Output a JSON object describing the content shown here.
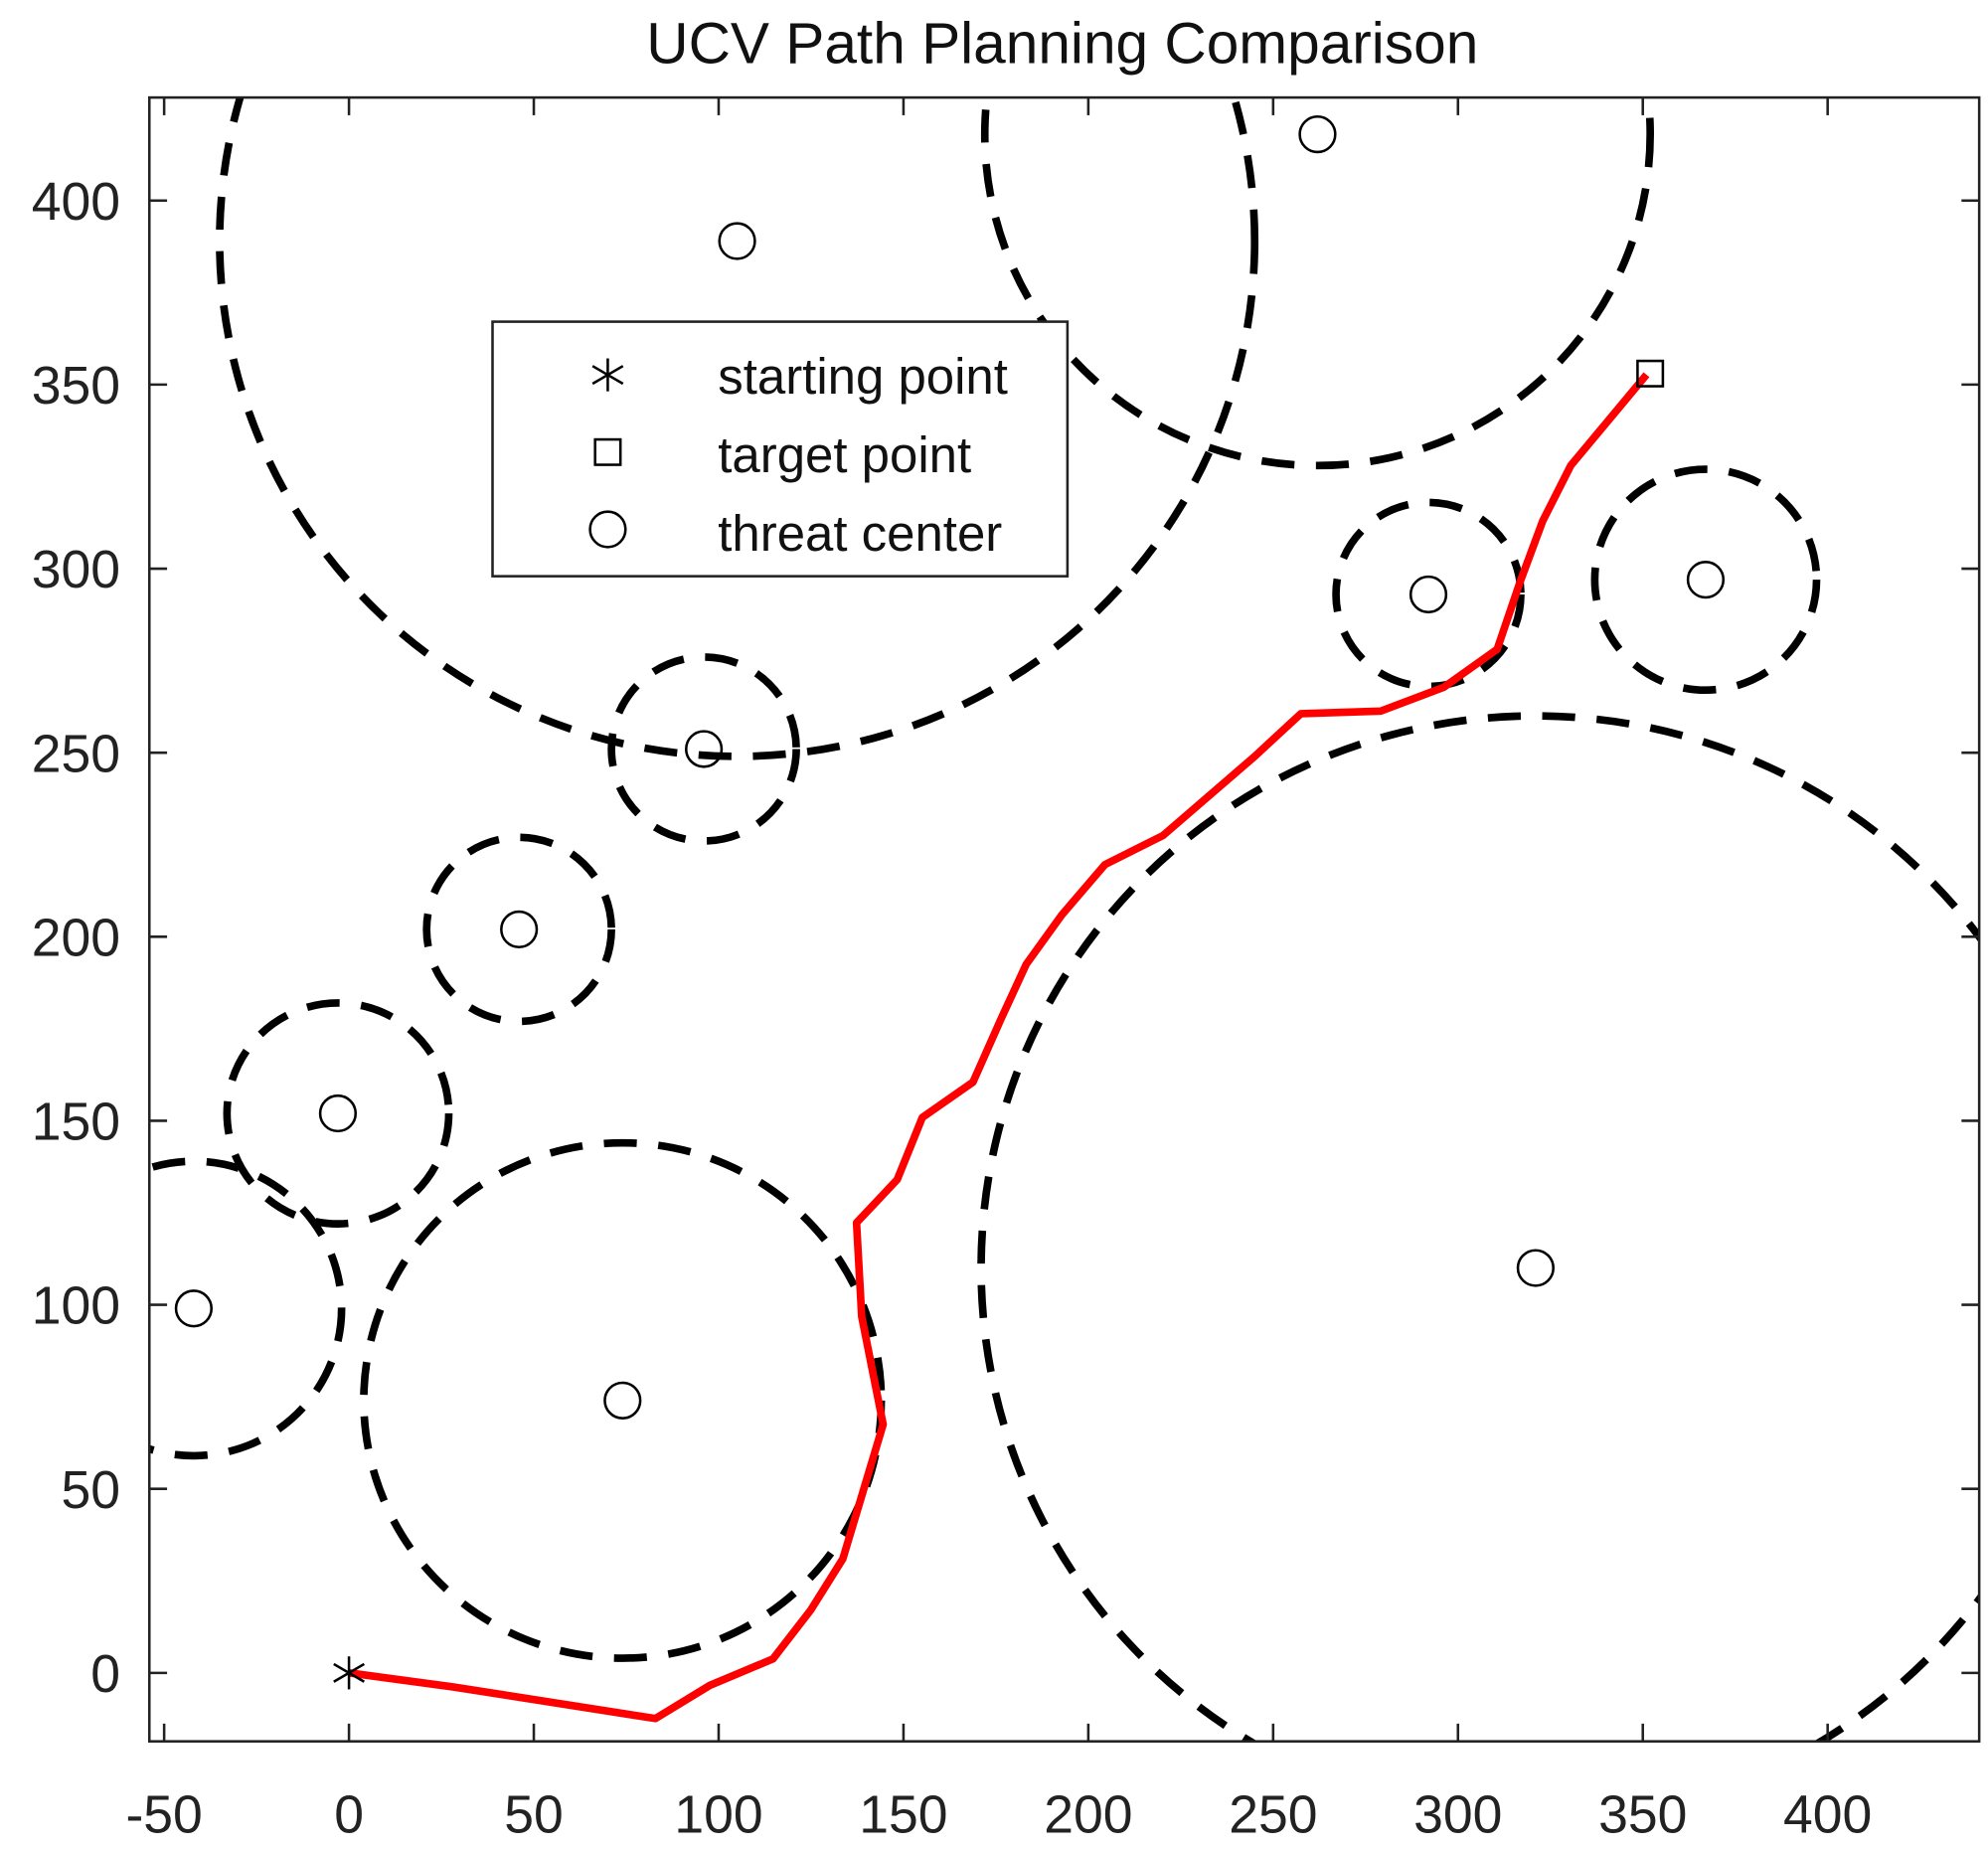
{
  "chart_data": {
    "type": "line",
    "title": "UCV Path Planning Comparison",
    "xlabel": "",
    "ylabel": "",
    "xlim": [
      -54,
      441
    ],
    "ylim": [
      -18.6,
      428
    ],
    "xticks": [
      -50,
      0,
      50,
      100,
      150,
      200,
      250,
      300,
      350,
      400
    ],
    "yticks": [
      0,
      50,
      100,
      150,
      200,
      250,
      300,
      350,
      400
    ],
    "grid": false,
    "legend": {
      "placement": "upper-center",
      "entries": [
        {
          "marker": "asterisk",
          "label": "starting point"
        },
        {
          "marker": "square",
          "label": "target point"
        },
        {
          "marker": "circle",
          "label": "threat center"
        }
      ]
    },
    "starting_point": {
      "x": 0,
      "y": 0
    },
    "target_point": {
      "x": 352,
      "y": 353
    },
    "threats": [
      {
        "x": 105,
        "y": 389,
        "radius": 140
      },
      {
        "x": 262,
        "y": 418,
        "radius": 90
      },
      {
        "x": 96,
        "y": 251,
        "radius": 25
      },
      {
        "x": 46,
        "y": 202,
        "radius": 25
      },
      {
        "x": -3,
        "y": 152,
        "radius": 30
      },
      {
        "x": -42,
        "y": 99,
        "radius": 40
      },
      {
        "x": 74,
        "y": 74,
        "radius": 70
      },
      {
        "x": 321,
        "y": 110,
        "radius": 150
      },
      {
        "x": 292,
        "y": 293,
        "radius": 25
      },
      {
        "x": 367,
        "y": 297,
        "radius": 30
      }
    ],
    "path": {
      "color": "#ff0000",
      "x": [
        0,
        28.1,
        82.9,
        97.6,
        114.7,
        125,
        133.6,
        144.5,
        138.7,
        137.3,
        148.3,
        155.1,
        168.8,
        176.4,
        183.2,
        192.8,
        204.5,
        220.2,
        232.9,
        244.9,
        257.5,
        279.1,
        296.2,
        310.6,
        316.8,
        322.9,
        330.5,
        340.8,
        351
      ],
      "y": [
        0,
        -3.8,
        -12.4,
        -3.4,
        3.8,
        17.2,
        31,
        67.5,
        96.8,
        122.3,
        134,
        150.9,
        160.5,
        177.7,
        192.5,
        205.9,
        219.6,
        227.5,
        238.5,
        248.9,
        260.6,
        261.3,
        267.8,
        278.1,
        296.4,
        312.9,
        328,
        340.4,
        352.7
      ]
    }
  }
}
